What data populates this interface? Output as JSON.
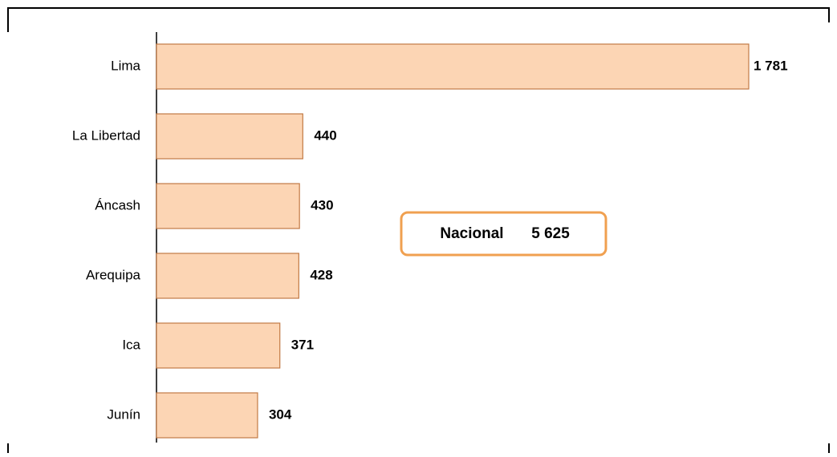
{
  "chart_data": {
    "type": "bar",
    "orientation": "horizontal",
    "categories": [
      "Lima",
      "La Libertad",
      "Áncash",
      "Arequipa",
      "Ica",
      "Junín"
    ],
    "values": [
      1781,
      440,
      430,
      428,
      371,
      304
    ],
    "value_labels": [
      "1 781",
      "440",
      "430",
      "428",
      "371",
      "304"
    ],
    "color": "#fcd5b4",
    "annotation": [
      "Nacional",
      "5 625"
    ]
  }
}
